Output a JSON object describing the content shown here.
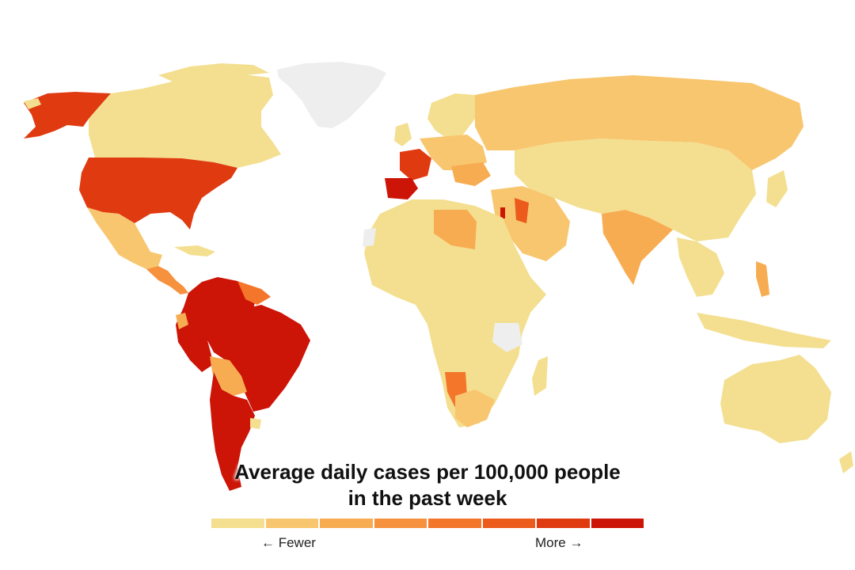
{
  "title_line1": "Average daily cases per 100,000 people",
  "title_line2": "in the past week",
  "legend": {
    "fewer_label": "← Fewer",
    "more_label": "More →",
    "colors": [
      "#f3df8f",
      "#f8c66e",
      "#f7ac52",
      "#f6913d",
      "#f3762b",
      "#ec5b1c",
      "#e03a11",
      "#cc1407"
    ]
  },
  "colors": {
    "no_data": "#eeeeee",
    "level_1": "#f3df8f",
    "level_2": "#f8c66e",
    "level_3": "#f7ac52",
    "level_4": "#f6913d",
    "level_5": "#f3762b",
    "level_6": "#ec5b1c",
    "level_7": "#e03a11",
    "level_8": "#cc1407"
  }
}
